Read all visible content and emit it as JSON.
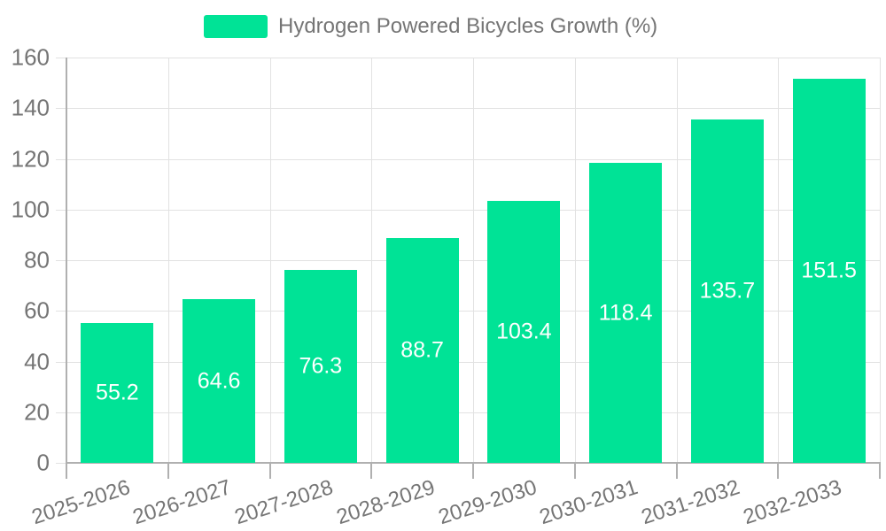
{
  "chart_data": {
    "type": "bar",
    "legend": "Hydrogen Powered Bicycles Growth (%)",
    "legend_position": "top",
    "categories": [
      "2025-2026",
      "2026-2027",
      "2027-2028",
      "2028-2029",
      "2029-2030",
      "2030-2031",
      "2031-2032",
      "2032-2033"
    ],
    "values": [
      55.2,
      64.6,
      76.3,
      88.7,
      103.4,
      118.4,
      135.7,
      151.5
    ],
    "value_labels": [
      "55.2",
      "64.6",
      "76.3",
      "88.7",
      "103.4",
      "118.4",
      "135.7",
      "151.5"
    ],
    "y_ticks": [
      "0",
      "20",
      "40",
      "60",
      "80",
      "100",
      "120",
      "140",
      "160"
    ],
    "ylim": [
      0,
      160
    ],
    "grid": true,
    "colors": {
      "bar": "#00E396",
      "value_label": "#ffffff",
      "axis_text": "#757575",
      "gridline": "#e2e2e2",
      "axis_line": "#b0b0b0",
      "background": "#ffffff"
    }
  }
}
